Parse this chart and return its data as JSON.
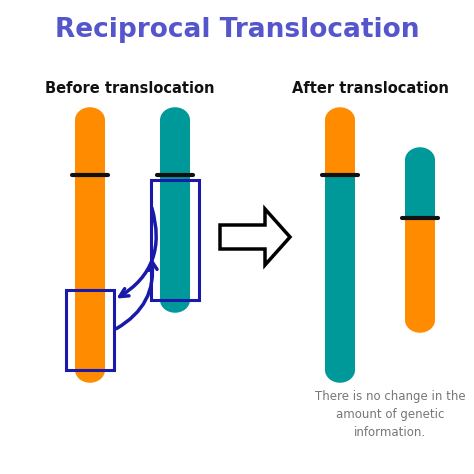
{
  "title": "Reciprocal Translocation",
  "subtitle_left": "Before translocation",
  "subtitle_right": "After translocation",
  "note": "There is no change in the\namount of genetic\ninformation.",
  "orange": "#FF8C00",
  "teal": "#009999",
  "title_color": "#5555CC",
  "label_color": "#111111",
  "arrow_color": "#1a1aaa",
  "bg_color": "#FFFFFF",
  "note_color": "#777777",
  "fig_width": 4.74,
  "fig_height": 4.74,
  "dpi": 100
}
